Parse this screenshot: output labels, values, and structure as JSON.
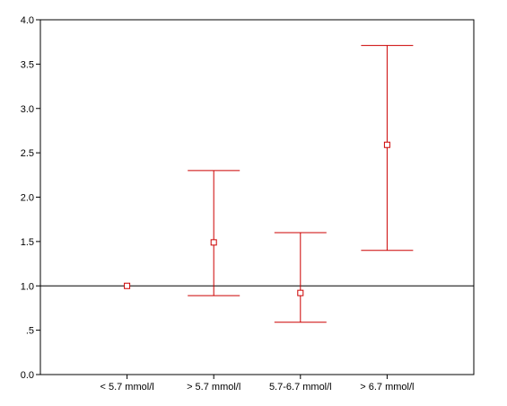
{
  "chart_data": {
    "type": "scatter",
    "subtype": "error-bar",
    "categories": [
      "< 5.7 mmol/l",
      "> 5.7 mmol/l",
      "5.7-6.7 mmol/l",
      "> 6.7 mmol/l"
    ],
    "series": [
      {
        "point": [
          1.0,
          1.49,
          0.92,
          2.59
        ],
        "lower": [
          null,
          0.89,
          0.59,
          1.4
        ],
        "upper": [
          null,
          2.3,
          1.6,
          3.71
        ]
      }
    ],
    "title": "",
    "xlabel": "",
    "ylabel": "",
    "ylim": [
      0,
      4
    ],
    "yticks": [
      0,
      0.5,
      1.0,
      1.5,
      2.0,
      2.5,
      3.0,
      3.5,
      4.0
    ],
    "ytick_labels": [
      "0.0",
      ".5",
      "1.0",
      "1.5",
      "2.0",
      "2.5",
      "3.0",
      "3.5",
      "4.0"
    ],
    "reference_line": 1.0,
    "grid": false,
    "legend": "none",
    "colors": {
      "series": "#cc0000",
      "reference_line": "#000000",
      "axis": "#000000",
      "background": "#ffffff"
    }
  }
}
